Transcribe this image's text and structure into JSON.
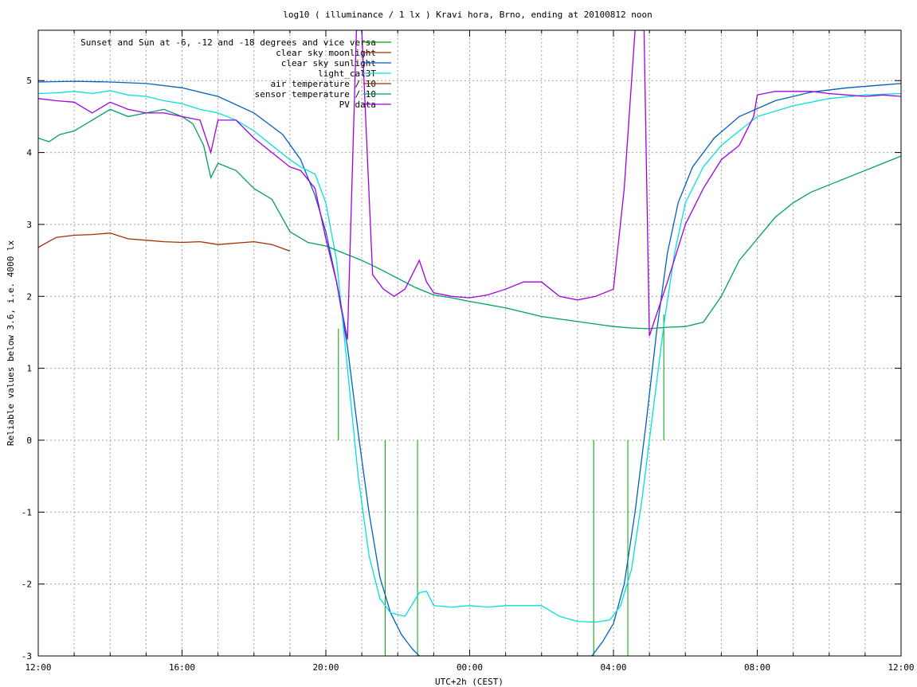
{
  "chart_data": {
    "type": "line",
    "title": "log10 ( illuminance / 1 lx ) Kravi hora, Brno, ending at 20100812 noon",
    "xlabel": "UTC+2h (CEST)",
    "ylabel": "Reliable values below 3.6, i.e. 4000 lx",
    "xlim": [
      12,
      36
    ],
    "ylim": [
      -3,
      5.7
    ],
    "grid": true,
    "legend_position": "top-right",
    "x_ticks": [
      {
        "v": 12,
        "label": "12:00"
      },
      {
        "v": 16,
        "label": "16:00"
      },
      {
        "v": 20,
        "label": "20:00"
      },
      {
        "v": 24,
        "label": "00:00"
      },
      {
        "v": 28,
        "label": "04:00"
      },
      {
        "v": 32,
        "label": "08:00"
      },
      {
        "v": 36,
        "label": "12:00"
      }
    ],
    "x_minor_ticks": [
      13,
      14,
      15,
      17,
      18,
      19,
      21,
      22,
      23,
      25,
      26,
      27,
      29,
      30,
      31,
      33,
      34,
      35
    ],
    "y_ticks": [
      {
        "v": 5,
        "label": "5"
      },
      {
        "v": 4,
        "label": "4"
      },
      {
        "v": 3,
        "label": "3"
      },
      {
        "v": 2,
        "label": "2"
      },
      {
        "v": 1,
        "label": "1"
      },
      {
        "v": 0,
        "label": "0"
      },
      {
        "v": -1,
        "label": "-1"
      },
      {
        "v": -2,
        "label": "-2"
      },
      {
        "v": -3,
        "label": "-3"
      }
    ],
    "series": [
      {
        "name": "Sunset and Sun at -6, -12 and -18 degrees and vice versa",
        "color": "#00a000",
        "style": "impulses",
        "x": [
          20.35,
          21.65,
          22.55,
          27.45,
          28.4,
          29.4
        ],
        "y": [
          1.55,
          -3.0,
          -3.0,
          -3.0,
          -3.0,
          1.75
        ],
        "base": 0
      },
      {
        "name": "clear sky moonlight",
        "color": "#a03000",
        "x": [],
        "y": []
      },
      {
        "name": "clear sky sunlight",
        "color": "#0060c0",
        "x": [
          12,
          13,
          14,
          15,
          16,
          17,
          18,
          18.8,
          19.3,
          19.7,
          20.0,
          20.3,
          20.6,
          20.9,
          21.2,
          21.5,
          21.8,
          22.1,
          22.4,
          22.6,
          27.4,
          27.7,
          28.0,
          28.3,
          28.6,
          28.9,
          29.2,
          29.5,
          29.8,
          30.2,
          30.8,
          31.5,
          32.5,
          33.5,
          34.5,
          35.5,
          36
        ],
        "y": [
          4.98,
          4.99,
          4.98,
          4.96,
          4.9,
          4.78,
          4.55,
          4.25,
          3.9,
          3.4,
          2.9,
          2.2,
          1.3,
          0.1,
          -1.0,
          -1.9,
          -2.4,
          -2.7,
          -2.9,
          -3.0,
          -3.0,
          -2.8,
          -2.55,
          -2.0,
          -1.0,
          0.2,
          1.5,
          2.6,
          3.3,
          3.8,
          4.2,
          4.5,
          4.72,
          4.84,
          4.9,
          4.94,
          4.96
        ]
      },
      {
        "name": "light_cal3T",
        "color": "#00e0e0",
        "x": [
          12,
          12.5,
          13,
          13.5,
          14,
          14.5,
          15,
          15.5,
          16,
          16.5,
          17,
          17.5,
          18,
          18.5,
          19,
          19.3,
          19.7,
          20.0,
          20.3,
          20.6,
          20.9,
          21.2,
          21.5,
          21.8,
          22.2,
          22.6,
          22.8,
          23.0,
          23.5,
          24.0,
          24.5,
          25.0,
          25.5,
          26.0,
          26.5,
          27.0,
          27.5,
          27.9,
          28.2,
          28.5,
          28.8,
          29.1,
          29.4,
          29.7,
          30.0,
          30.5,
          31.0,
          31.5,
          32,
          33,
          34,
          35,
          36
        ],
        "y": [
          4.82,
          4.83,
          4.85,
          4.82,
          4.86,
          4.8,
          4.78,
          4.72,
          4.68,
          4.6,
          4.55,
          4.45,
          4.3,
          4.1,
          3.9,
          3.8,
          3.7,
          3.3,
          2.5,
          1.0,
          -0.5,
          -1.6,
          -2.2,
          -2.4,
          -2.45,
          -2.12,
          -2.1,
          -2.3,
          -2.32,
          -2.3,
          -2.32,
          -2.3,
          -2.3,
          -2.3,
          -2.45,
          -2.52,
          -2.53,
          -2.5,
          -2.3,
          -1.8,
          -0.8,
          0.4,
          1.6,
          2.6,
          3.3,
          3.8,
          4.1,
          4.3,
          4.5,
          4.65,
          4.75,
          4.8,
          4.82
        ]
      },
      {
        "name": "air temperature / 10",
        "color": "#a03000",
        "x": [
          12,
          12.5,
          13,
          13.5,
          14,
          14.5,
          15,
          15.5,
          16,
          16.5,
          17,
          17.5,
          18,
          18.5,
          19
        ],
        "y": [
          2.68,
          2.82,
          2.85,
          2.86,
          2.88,
          2.8,
          2.78,
          2.76,
          2.75,
          2.76,
          2.72,
          2.74,
          2.76,
          2.72,
          2.63
        ]
      },
      {
        "name": "sensor temperature / 10",
        "color": "#00a060",
        "x": [
          12,
          12.3,
          12.6,
          13,
          13.5,
          14,
          14.5,
          15,
          15.5,
          16,
          16.3,
          16.6,
          16.8,
          17,
          17.5,
          18,
          18.5,
          19,
          19.5,
          20,
          20.5,
          21,
          21.5,
          22,
          22.5,
          23,
          23.5,
          24,
          25,
          26,
          27,
          28,
          28.5,
          29,
          29.5,
          30,
          30.5,
          31,
          31.5,
          32,
          32.5,
          33,
          33.5,
          34,
          34.5,
          35,
          35.5,
          36
        ],
        "y": [
          4.2,
          4.15,
          4.25,
          4.3,
          4.45,
          4.6,
          4.5,
          4.55,
          4.6,
          4.5,
          4.4,
          4.1,
          3.65,
          3.85,
          3.75,
          3.5,
          3.35,
          2.9,
          2.75,
          2.7,
          2.6,
          2.5,
          2.38,
          2.25,
          2.12,
          2.02,
          1.98,
          1.93,
          1.84,
          1.72,
          1.65,
          1.58,
          1.56,
          1.55,
          1.57,
          1.58,
          1.64,
          2.0,
          2.5,
          2.8,
          3.1,
          3.3,
          3.45,
          3.55,
          3.65,
          3.75,
          3.85,
          3.95
        ]
      },
      {
        "name": "PV data",
        "color": "#a000e0",
        "x": [
          12,
          12.5,
          13,
          13.5,
          14,
          14.5,
          15,
          15.5,
          16,
          16.5,
          16.8,
          17,
          17.5,
          18,
          18.5,
          19,
          19.3,
          19.7,
          20.0,
          20.3,
          20.6,
          20.85,
          21.0,
          21.3,
          21.6,
          21.9,
          22.2,
          22.6,
          22.8,
          23.0,
          23.5,
          24.0,
          24.5,
          25.0,
          25.5,
          26.0,
          26.5,
          27.0,
          27.5,
          28.0,
          28.3,
          28.6,
          28.85,
          29.0,
          29.5,
          30.0,
          30.5,
          31.0,
          31.5,
          31.9,
          32.0,
          32.5,
          33,
          33.5,
          34,
          34.5,
          35,
          35.5,
          36
        ],
        "y": [
          4.75,
          4.72,
          4.7,
          4.55,
          4.7,
          4.6,
          4.55,
          4.55,
          4.5,
          4.45,
          4.0,
          4.45,
          4.45,
          4.2,
          4.0,
          3.8,
          3.75,
          3.5,
          2.8,
          2.2,
          1.4,
          5.7,
          5.7,
          2.3,
          2.1,
          2.0,
          2.1,
          2.5,
          2.2,
          2.05,
          2.0,
          1.98,
          2.02,
          2.1,
          2.2,
          2.2,
          2.0,
          1.95,
          2.0,
          2.1,
          3.5,
          5.7,
          5.7,
          1.45,
          2.2,
          3.0,
          3.5,
          3.9,
          4.1,
          4.5,
          4.8,
          4.85,
          4.85,
          4.85,
          4.82,
          4.8,
          4.78,
          4.8,
          4.78
        ]
      }
    ]
  }
}
